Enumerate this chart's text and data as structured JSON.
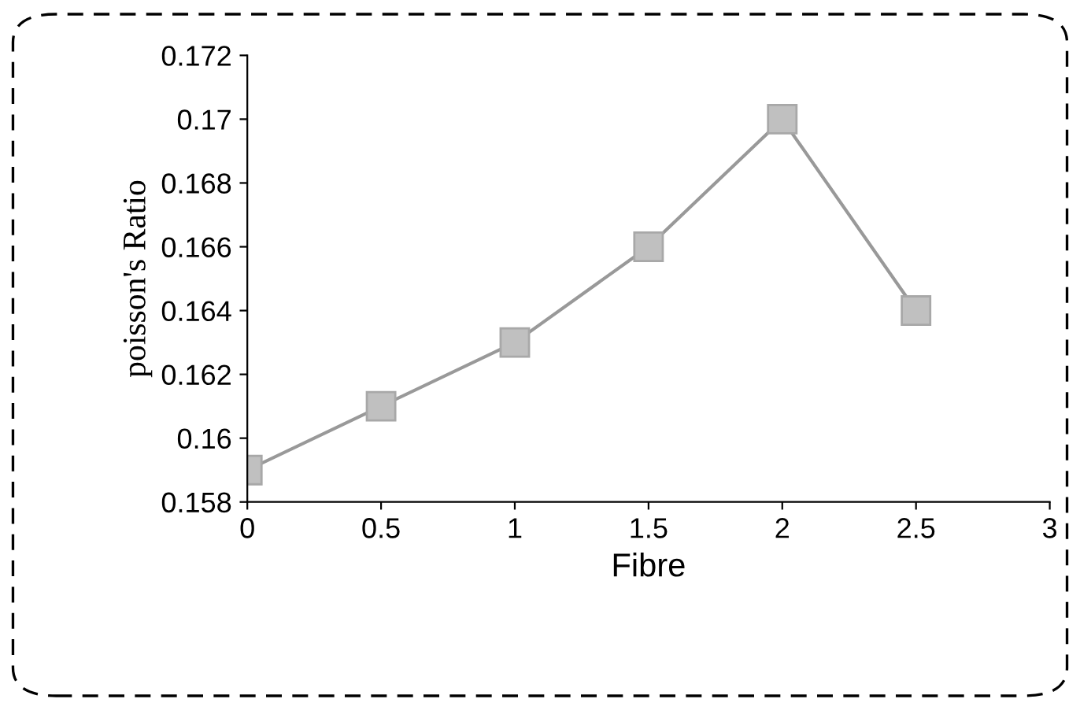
{
  "chart_data": {
    "type": "line",
    "xlabel": "Fibre",
    "ylabel": "poisson's Ratio",
    "x": [
      0,
      0.5,
      1,
      1.5,
      2,
      2.5
    ],
    "series": [
      {
        "color": "#999999",
        "values": [
          0.159,
          0.161,
          0.163,
          0.166,
          0.17,
          0.164
        ]
      }
    ],
    "xlim": [
      0,
      3
    ],
    "xticks": [
      0,
      0.5,
      1,
      1.5,
      2,
      2.5,
      3
    ],
    "ylim": [
      0.158,
      0.172
    ],
    "yticks": [
      0.158,
      0.16,
      0.162,
      0.164,
      0.166,
      0.168,
      0.17,
      0.172
    ],
    "marker": "square",
    "grid": false,
    "legend": false
  }
}
